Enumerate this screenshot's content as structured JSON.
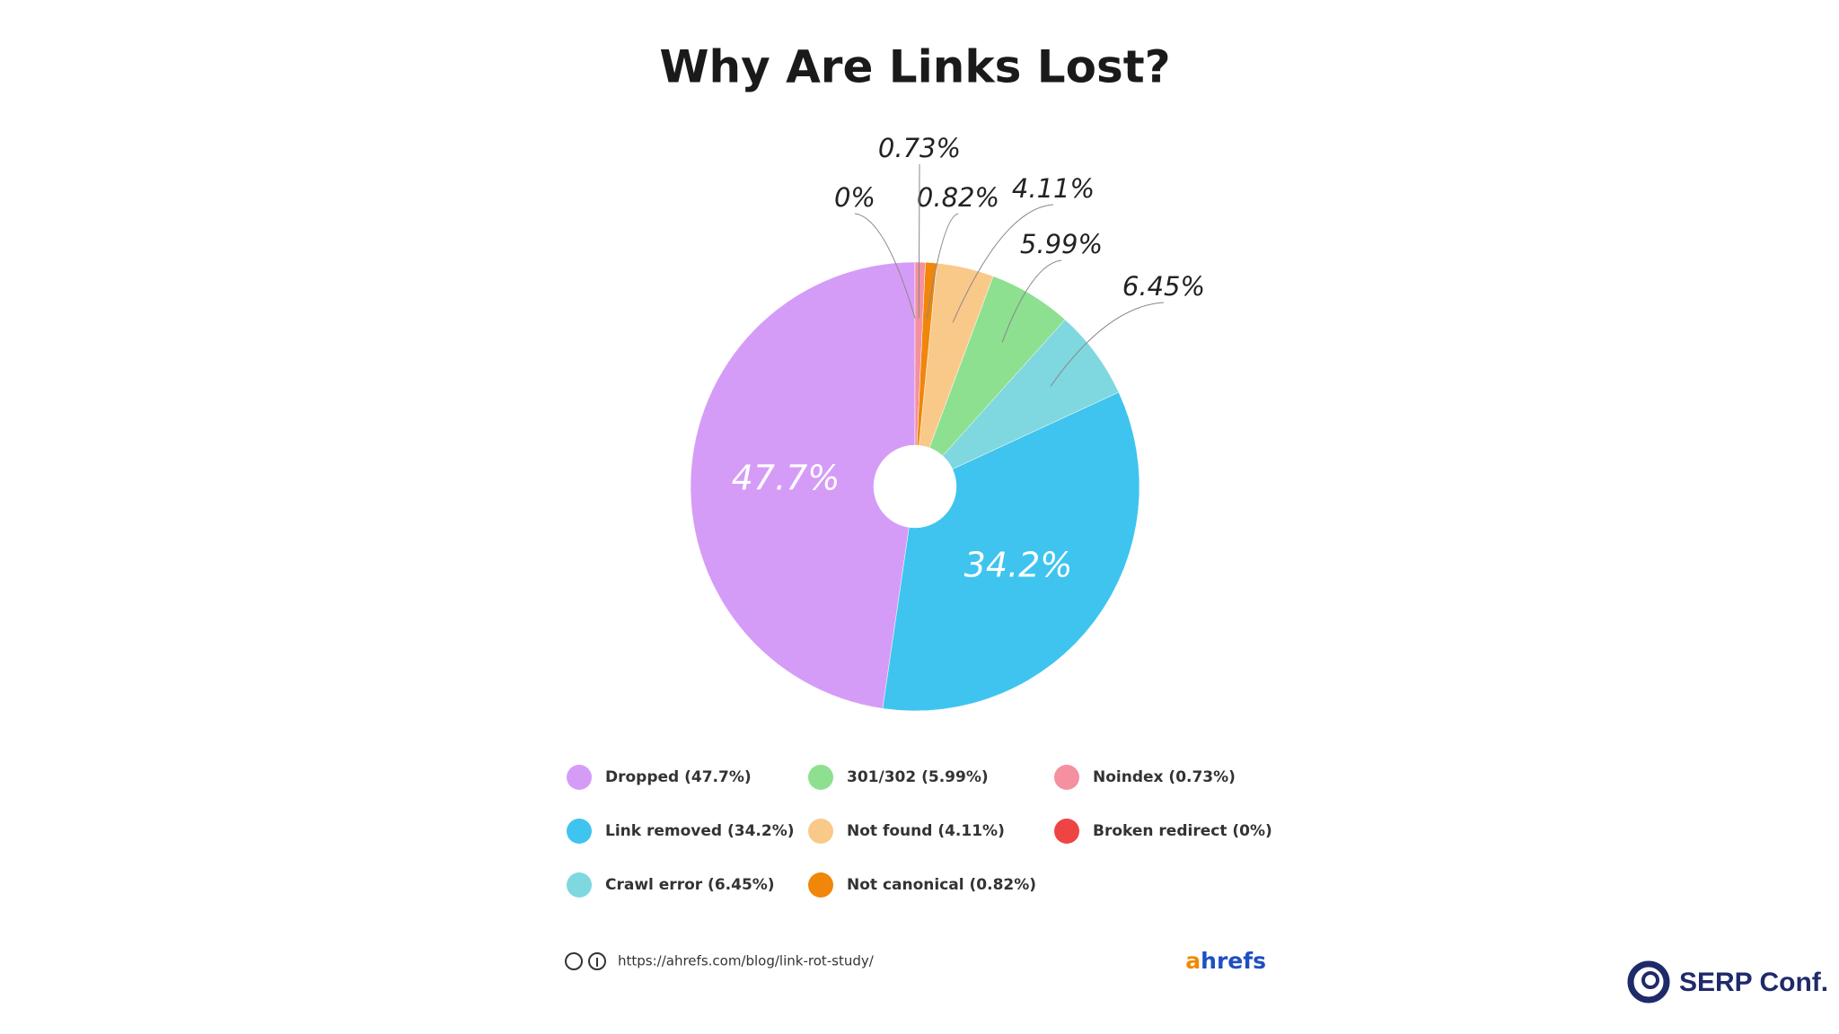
{
  "chart_data": {
    "type": "pie",
    "title": "Why Are Links Lost?",
    "categories": [
      "Dropped (47.7%)",
      "Link removed (34.2%)",
      "Crawl error (6.45%)",
      "301/302 (5.99%)",
      "Not found (4.11%)",
      "Not canonical (0.82%)",
      "Noindex (0.73%)",
      "Broken redirect (0%)"
    ],
    "values": [
      47.7,
      34.2,
      6.45,
      5.99,
      4.11,
      0.82,
      0.73,
      0
    ],
    "value_labels": [
      "47.7%",
      "34.2%",
      "6.45%",
      "5.99%",
      "4.11%",
      "0.82%",
      "0.73%",
      "0%"
    ],
    "colors": [
      "#d59cf7",
      "#3ec4ef",
      "#7fd8e0",
      "#8de08f",
      "#f9c98a",
      "#f0860a",
      "#f4909f",
      "#ef4444"
    ]
  },
  "footer": {
    "url": "https://ahrefs.com/blog/link-rot-study/",
    "logo_parts": [
      "a",
      "hrefs"
    ],
    "brand": "SERP Conf."
  }
}
